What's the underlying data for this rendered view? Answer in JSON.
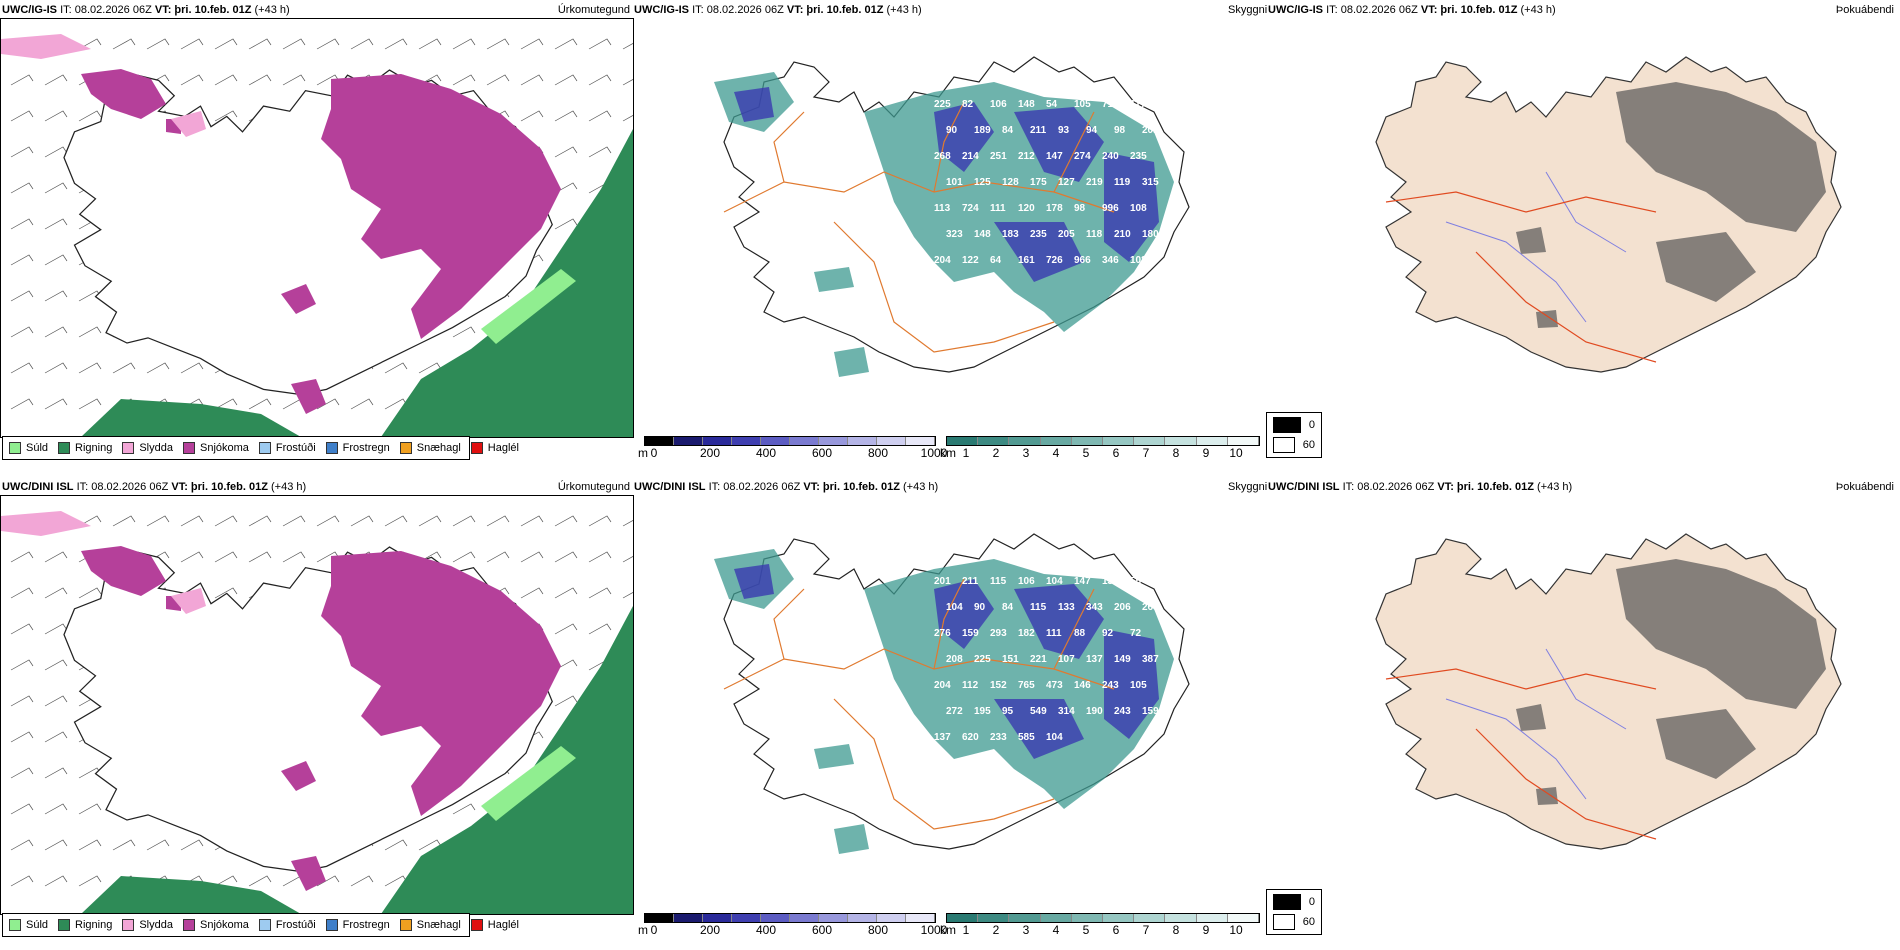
{
  "rows": [
    {
      "model": "UWC/IG-IS",
      "it_label": "IT:",
      "it_value": "08.02.2026 06Z",
      "vt_label": "VT:",
      "vt_value": "þri. 10.feb. 01Z",
      "lead": "(+43 h)",
      "labels_snow": [
        "225",
        "82",
        "106",
        "148",
        "54",
        "105",
        "71",
        "117",
        "90",
        "189",
        "84",
        "211",
        "93",
        "94",
        "98",
        "201",
        "268",
        "214",
        "251",
        "212",
        "147",
        "274",
        "240",
        "235",
        "101",
        "125",
        "128",
        "175",
        "127",
        "219",
        "119",
        "315",
        "113",
        "724",
        "111",
        "120",
        "178",
        "98",
        "996",
        "108",
        "323",
        "148",
        "183",
        "235",
        "205",
        "118",
        "210",
        "180",
        "204",
        "122",
        "64",
        "161",
        "726",
        "966",
        "346",
        "108"
      ],
      "labels_snow_trunc": 56
    },
    {
      "model": "UWC/DINI ISL",
      "it_label": "IT:",
      "it_value": "08.02.2026 06Z",
      "vt_label": "VT:",
      "vt_value": "þri. 10.feb. 01Z",
      "lead": "(+43 h)",
      "labels_snow": [
        "201",
        "211",
        "115",
        "106",
        "104",
        "147",
        "133",
        "55",
        "104",
        "90",
        "84",
        "115",
        "133",
        "343",
        "206",
        "263",
        "276",
        "159",
        "293",
        "182",
        "111",
        "88",
        "92",
        "72",
        "208",
        "225",
        "151",
        "221",
        "107",
        "137",
        "149",
        "387",
        "204",
        "112",
        "152",
        "765",
        "473",
        "146",
        "243",
        "105",
        "272",
        "195",
        "95",
        "549",
        "314",
        "190",
        "243",
        "159",
        "137",
        "620",
        "233",
        "585",
        "104"
      ],
      "labels_snow_trunc": 53
    }
  ],
  "panel_titles": {
    "precip": "Úrkomutegund",
    "visibility": "Skyggni",
    "fog": "Þokuábendi"
  },
  "precip_legend": [
    {
      "label": "Súld",
      "color": "#90ee90"
    },
    {
      "label": "Rigning",
      "color": "#2e8b57"
    },
    {
      "label": "Slydda",
      "color": "#f2a6d6"
    },
    {
      "label": "Snjókoma",
      "color": "#b5409a"
    },
    {
      "label": "Frostúði",
      "color": "#9ecbf0"
    },
    {
      "label": "Frostregn",
      "color": "#3f7fc9"
    },
    {
      "label": "Snæhagl",
      "color": "#f0a020"
    },
    {
      "label": "Haglél",
      "color": "#e01010"
    }
  ],
  "vis_scale_m": {
    "unit": "m",
    "ticks": [
      "0",
      "200",
      "400",
      "600",
      "800",
      "1000"
    ],
    "colors": [
      "#000000",
      "#1a1a6e",
      "#2a2a9a",
      "#3f3fb0",
      "#5c5cc2",
      "#7a7ad0",
      "#9898dc",
      "#b4b4e6",
      "#cfcff0",
      "#e8e8f8"
    ]
  },
  "vis_scale_km": {
    "unit": "km",
    "ticks": [
      "1",
      "2",
      "3",
      "4",
      "5",
      "6",
      "7",
      "8",
      "9",
      "10"
    ],
    "colors": [
      "#2a7a72",
      "#3d8a82",
      "#529a92",
      "#68a9a2",
      "#7fb8b2",
      "#96c7c2",
      "#aed5d1",
      "#c5e2df",
      "#dceeed",
      "#f2f9f8"
    ]
  },
  "fog_legend": [
    {
      "value": "0",
      "color": "#000000"
    },
    {
      "value": "60",
      "color": "#ffffff"
    }
  ],
  "colors": {
    "snow": "#b5409a",
    "rain": "#2e8b57",
    "sleet": "#f2a6d6",
    "drizzle": "#90ee90",
    "vis_teal": "#3d9a90",
    "vis_blue": "#3a3ab0",
    "roads": "#e07a30",
    "fog_land": "#f3e1d0",
    "rivers": "#7f7fe0"
  }
}
